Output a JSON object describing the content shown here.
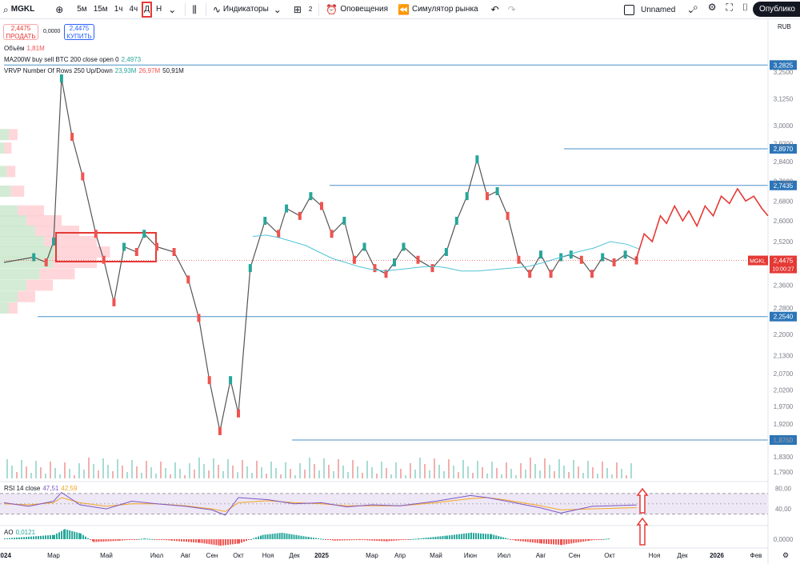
{
  "toolbar": {
    "symbol": "MGKL",
    "intervals": [
      "5м",
      "15м",
      "1ч",
      "4ч",
      "Д",
      "Н"
    ],
    "active_interval": "Д",
    "indicators_label": "Индикаторы",
    "layouts_count": "2",
    "alerts_label": "Оповещения",
    "replay_label": "Симулятор рынка",
    "layout_name": "Unnamed",
    "publish_label": "Опублико"
  },
  "trade": {
    "sell_price": "2,4475",
    "sell_label": "ПРОДАТЬ",
    "spread": "0,0000",
    "buy_price": "2,4475",
    "buy_label": "КУПИТЬ"
  },
  "legends": {
    "volume_label": "Объём",
    "volume_value": "1,81M",
    "ma_label": "MA200W buy sell BTC 200 close open 0",
    "ma_value": "2,4973",
    "vrvp_label": "VRVP Number Of Rows 250 Up/Down",
    "vrvp_up": "23,93M",
    "vrvp_down": "26,97M",
    "vrvp_total": "50,91M",
    "rsi_label": "RSI 14 close",
    "rsi_value": "47,51",
    "rsi_ma": "42,59",
    "ao_label": "AO",
    "ao_value": "0,0121"
  },
  "colors": {
    "up": "#26a69a",
    "down": "#ef5350",
    "level_line": "#4a90c8",
    "ma_line": "#4fc3d9",
    "forecast": "#e53935",
    "rsi_line": "#7e57c2",
    "rsi_ma": "#f5a623",
    "rsi_band": "#ede7f6",
    "label_bg": "#2b75b8",
    "price_label_bg": "#e53935"
  },
  "chart_data": {
    "type": "line",
    "currency": "RUB",
    "symbol": "MGKL",
    "price_axis_ticks": [
      3.25,
      3.125,
      3.0,
      2.92,
      2.84,
      2.76,
      2.68,
      2.6,
      2.52,
      2.44,
      2.36,
      2.28,
      2.2,
      2.13,
      2.07,
      2.02,
      1.97,
      1.92,
      1.875,
      1.83,
      1.79
    ],
    "price_axis_tick_labels": [
      "3,2500",
      "3,1250",
      "3,0000",
      "2,9200",
      "2,8400",
      "2,7600",
      "2,6800",
      "2,6000",
      "2,5200",
      "2,4400",
      "2,3600",
      "2,2800",
      "2,2000",
      "2,1300",
      "2,0700",
      "2,0200",
      "1,9700",
      "1,9200",
      "1,8750",
      "1,8300",
      "1,7900"
    ],
    "time_axis_labels": [
      "2024",
      "Мар",
      "Май",
      "Июл",
      "Авг",
      "Сен",
      "Окт",
      "Ноя",
      "Дек",
      "2025",
      "Мар",
      "Апр",
      "Май",
      "Июн",
      "Июл",
      "Авг",
      "Сен",
      "Окт",
      "Ноя",
      "Дек",
      "2026",
      "Фев"
    ],
    "horizontal_levels": [
      {
        "price": 3.2825,
        "label": "3,2825"
      },
      {
        "price": 2.897,
        "label": "2,8970"
      },
      {
        "price": 2.7435,
        "label": "2,7435"
      },
      {
        "price": 2.254,
        "label": "2,2540"
      },
      {
        "price": 1.875,
        "label": "1,8750"
      }
    ],
    "last_price": {
      "price": 2.4475,
      "label": "2,4475",
      "countdown": "10:00:27"
    },
    "price_path": {
      "months": [
        0,
        1.2,
        1.7,
        2.0,
        2.3,
        2.7,
        3.1,
        3.6,
        3.9,
        4.3,
        4.7,
        5.2,
        5.5,
        6.0,
        6.6,
        7.1,
        7.5,
        7.9,
        8.3,
        8.7,
        9.0,
        9.4,
        9.9,
        10.4,
        10.7,
        11.2,
        11.6,
        12.0,
        12.4,
        12.9,
        13.3,
        13.7,
        14.1,
        14.5,
        14.8,
        15.1,
        15.5,
        15.9,
        16.3,
        16.6,
        16.9,
        17.2,
        17.5,
        17.8,
        18.1,
        18.4,
        18.7,
        19.0,
        19.3,
        19.6,
        19.9,
        20.2,
        20.5,
        20.8,
        21.1,
        21.35,
        21.6
      ],
      "prices": [
        2.44,
        2.46,
        2.44,
        2.52,
        3.22,
        2.95,
        2.78,
        2.55,
        2.45,
        2.3,
        2.5,
        2.48,
        2.55,
        2.5,
        2.48,
        2.38,
        2.25,
        2.05,
        1.9,
        2.05,
        1.95,
        2.42,
        2.6,
        2.55,
        2.65,
        2.62,
        2.7,
        2.66,
        2.55,
        2.6,
        2.45,
        2.5,
        2.42,
        2.4,
        2.44,
        2.5,
        2.45,
        2.42,
        2.48,
        2.6,
        2.7,
        2.85,
        2.7,
        2.72,
        2.62,
        2.45,
        2.4,
        2.47,
        2.4,
        2.46,
        2.47,
        2.45,
        2.4,
        2.46,
        2.44,
        2.47,
        2.4475
      ]
    },
    "ma200w": {
      "months": [
        16.2,
        16.6,
        17.0,
        17.4,
        17.8,
        18.2,
        18.6,
        19.0,
        19.4,
        19.8,
        20.2,
        20.6,
        21.0,
        21.4,
        21.8,
        22.1,
        22.5,
        23.0,
        23.5,
        24.0,
        24.5,
        25.0,
        25.5,
        26.0,
        26.5,
        27.0,
        27.5,
        27.9
      ],
      "prices": [
        2.54,
        2.545,
        2.535,
        2.52,
        2.505,
        2.48,
        2.455,
        2.44,
        2.425,
        2.415,
        2.41,
        2.415,
        2.42,
        2.425,
        2.425,
        2.42,
        2.41,
        2.41,
        2.415,
        2.42,
        2.425,
        2.44,
        2.46,
        2.48,
        2.495,
        2.52,
        2.51,
        2.49
      ]
    },
    "forecast": {
      "months": [
        21.6,
        22.0,
        22.4,
        22.8,
        23.1,
        23.5,
        23.9,
        24.2,
        24.6,
        25.0,
        25.4,
        25.8,
        26.2,
        26.6,
        27.0,
        27.4,
        27.8,
        28.1
      ],
      "prices": [
        2.45,
        2.55,
        2.52,
        2.62,
        2.59,
        2.66,
        2.6,
        2.64,
        2.58,
        2.66,
        2.62,
        2.7,
        2.67,
        2.73,
        2.68,
        2.7,
        2.65,
        2.62
      ]
    },
    "rsi": {
      "levels": [
        80,
        40
      ],
      "level_labels": [
        "80,00",
        "40,00"
      ],
      "band": [
        70,
        30
      ],
      "months": [
        0,
        1,
        2,
        2.3,
        3,
        4,
        5,
        6,
        7,
        8,
        8.5,
        9,
        10,
        11,
        12,
        13,
        14,
        15,
        16,
        17,
        17.5,
        18,
        19,
        19.6,
        20.5,
        21.6
      ],
      "values": [
        52,
        45,
        55,
        72,
        48,
        40,
        55,
        50,
        45,
        38,
        28,
        62,
        58,
        50,
        52,
        44,
        48,
        46,
        55,
        66,
        62,
        56,
        42,
        32,
        45,
        47.51
      ],
      "ma_values": [
        50,
        48,
        52,
        62,
        52,
        45,
        50,
        50,
        46,
        40,
        35,
        52,
        56,
        52,
        50,
        46,
        46,
        46,
        52,
        60,
        62,
        58,
        46,
        38,
        40,
        42.59
      ]
    },
    "ao": {
      "zero_label": "0,0000",
      "months": [
        0,
        2.0,
        2.4,
        3.0,
        3.5,
        4.5,
        5.5,
        6.5,
        7.5,
        8.3,
        9.0,
        9.8,
        10.5,
        11.5,
        12.5,
        13.5,
        14.5,
        15.5,
        16.3,
        17.0,
        17.6,
        18.3,
        19.0,
        19.6,
        20.4,
        21.0
      ],
      "values": [
        0.01,
        0.06,
        0.14,
        0.08,
        -0.04,
        -0.02,
        0.01,
        -0.02,
        -0.05,
        -0.09,
        -0.06,
        0.06,
        0.09,
        0.03,
        -0.02,
        -0.01,
        -0.03,
        0.01,
        0.05,
        0.09,
        0.07,
        -0.02,
        -0.06,
        -0.08,
        -0.02,
        0.0121
      ]
    }
  }
}
